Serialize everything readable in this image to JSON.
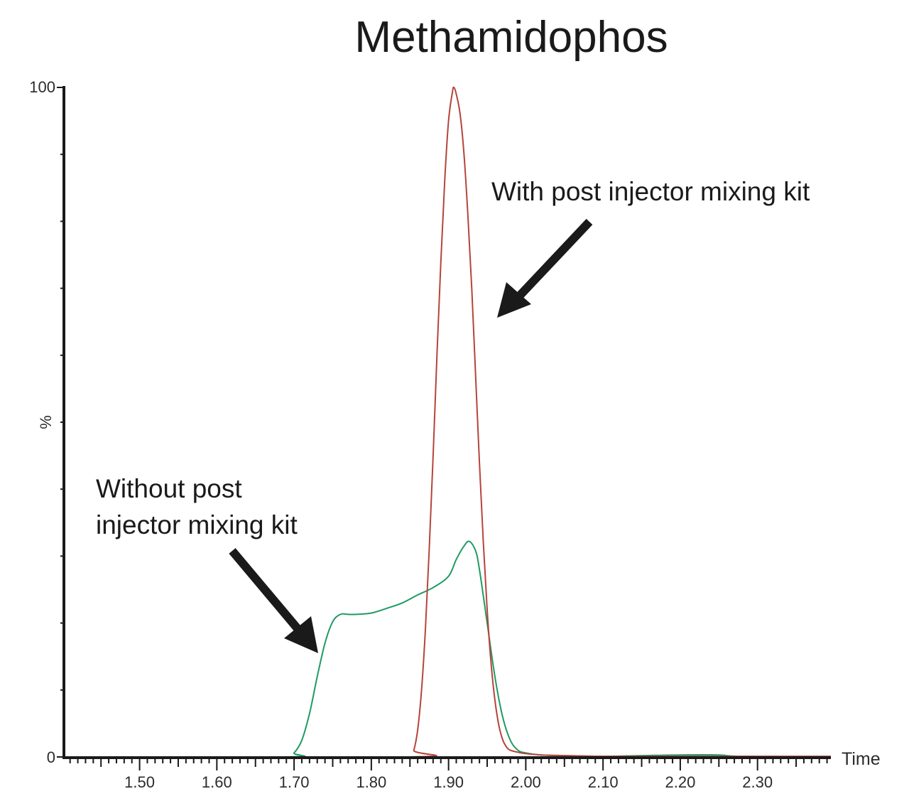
{
  "chart_data": {
    "type": "line",
    "title": "Methamidophos",
    "xlabel": "Time",
    "ylabel": "%",
    "xlim": [
      1.402,
      2.395
    ],
    "ylim": [
      0,
      100
    ],
    "x_ticks": {
      "labels": [
        "1.50",
        "1.60",
        "1.70",
        "1.80",
        "1.90",
        "2.00",
        "2.10",
        "2.20",
        "2.30"
      ],
      "values": [
        1.5,
        1.6,
        1.7,
        1.8,
        1.9,
        2.0,
        2.1,
        2.2,
        2.3
      ],
      "minor_step": 0.01,
      "medium_step": 0.05
    },
    "y_ticks": {
      "labels": [
        "0",
        "100"
      ],
      "values": [
        0,
        100
      ],
      "minor_step": 10
    },
    "grid": false,
    "legend": null,
    "series": [
      {
        "name": "Without post injector mixing kit",
        "color": "#1f9a63",
        "x": [
          1.402,
          1.69,
          1.7,
          1.71,
          1.72,
          1.73,
          1.74,
          1.75,
          1.76,
          1.77,
          1.78,
          1.8,
          1.82,
          1.84,
          1.86,
          1.88,
          1.9,
          1.91,
          1.92,
          1.927,
          1.935,
          1.94,
          1.95,
          1.96,
          1.97,
          1.98,
          1.99,
          2.0,
          2.02,
          2.05,
          2.1,
          2.15,
          2.2,
          2.25,
          2.28,
          2.395
        ],
        "y": [
          0,
          0,
          0.6,
          2.5,
          6.5,
          12.0,
          17.0,
          20.2,
          21.3,
          21.3,
          21.3,
          21.5,
          22.2,
          23.0,
          24.2,
          25.3,
          27.0,
          29.5,
          31.5,
          32.2,
          30.8,
          28.0,
          20.0,
          12.0,
          6.0,
          2.5,
          1.0,
          0.6,
          0.3,
          0.2,
          0.1,
          0.2,
          0.3,
          0.3,
          0.1,
          0.05
        ]
      },
      {
        "name": "With post injector mixing kit",
        "color": "#b5443a",
        "x": [
          1.402,
          1.85,
          1.855,
          1.86,
          1.865,
          1.87,
          1.875,
          1.88,
          1.885,
          1.89,
          1.895,
          1.9,
          1.905,
          1.907,
          1.91,
          1.915,
          1.92,
          1.925,
          1.93,
          1.935,
          1.94,
          1.945,
          1.95,
          1.955,
          1.96,
          1.965,
          1.97,
          1.975,
          1.98,
          1.99,
          2.0,
          2.02,
          2.05,
          2.1,
          2.2,
          2.395
        ],
        "y": [
          0,
          0,
          1.0,
          4.0,
          10.0,
          19.0,
          31.0,
          45.0,
          60.0,
          74.0,
          86.0,
          95.0,
          99.3,
          100.0,
          99.0,
          96.0,
          90.0,
          81.0,
          70.0,
          57.0,
          44.0,
          32.0,
          22.0,
          14.0,
          8.5,
          4.8,
          2.6,
          1.5,
          1.0,
          0.7,
          0.5,
          0.3,
          0.2,
          0.1,
          0.1,
          0.1
        ]
      }
    ],
    "annotations": [
      {
        "text_lines": [
          "With post injector mixing kit"
        ],
        "arrow_target_series": "With post injector mixing kit"
      },
      {
        "text_lines": [
          "Without post",
          "injector mixing kit"
        ],
        "arrow_target_series": "Without post injector mixing kit"
      }
    ]
  }
}
